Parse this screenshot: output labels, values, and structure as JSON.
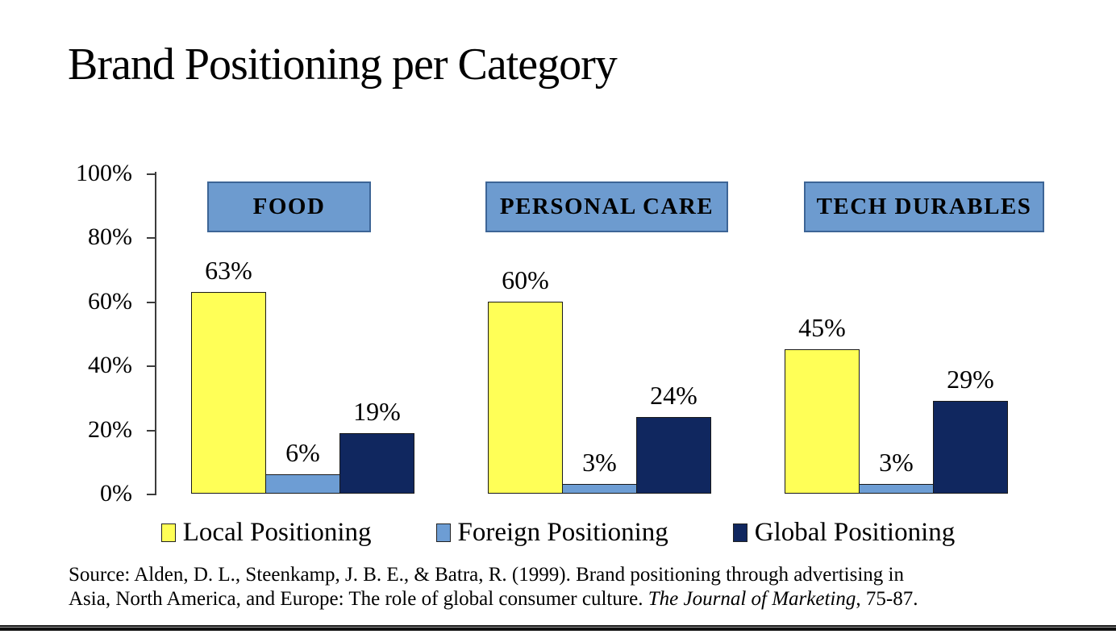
{
  "title": "Brand Positioning per Category",
  "chart_data": {
    "type": "bar",
    "title": "Brand Positioning per Category",
    "categories": [
      "FOOD",
      "PERSONAL CARE",
      "TECH DURABLES"
    ],
    "series": [
      {
        "name": "Local Positioning",
        "color": "#FFFF57",
        "values": [
          63,
          60,
          45
        ]
      },
      {
        "name": "Foreign Positioning",
        "color": "#6D9DD4",
        "values": [
          6,
          3,
          3
        ]
      },
      {
        "name": "Global Positioning",
        "color": "#10275F",
        "values": [
          19,
          24,
          29
        ]
      }
    ],
    "value_label_suffix": "%",
    "ytick_labels": [
      "0%",
      "20%",
      "40%",
      "60%",
      "80%",
      "100%"
    ],
    "ytick_values": [
      0,
      20,
      40,
      60,
      80,
      100
    ],
    "ylim": [
      0,
      100
    ],
    "grid": false,
    "legend_position": "bottom"
  },
  "source": {
    "prefix": "Source: Alden, D. L., Steenkamp, J. B. E., & Batra, R. (1999). Brand positioning through advertising in Asia, North America, and Europe: The role of global consumer culture. ",
    "journal_italic": "The Journal of Marketing",
    "suffix": ", 75-87."
  },
  "colors": {
    "local_bar": "#FFFF57",
    "foreign_bar": "#6D9DD4",
    "global_bar": "#10275F",
    "category_box_fill": "#6D9BCF",
    "category_box_border": "#3D6596",
    "axis": "#3C3C3C",
    "text": "#000000"
  }
}
